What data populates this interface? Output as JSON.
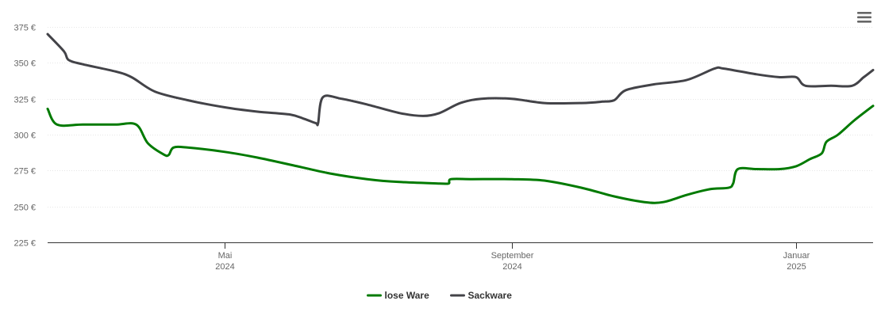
{
  "chart_data": {
    "type": "line",
    "title": "",
    "xlabel": "",
    "ylabel": "",
    "ylim": [
      225,
      375
    ],
    "y_ticks": [
      "225 €",
      "250 €",
      "275 €",
      "300 €",
      "325 €",
      "350 €",
      "375 €"
    ],
    "y_tick_values": [
      225,
      250,
      275,
      300,
      325,
      350,
      375
    ],
    "x_range": [
      "2024-02-15",
      "2025-02-03"
    ],
    "x_ticks": [
      {
        "date": "2024-05-01",
        "month": "Mai",
        "year": "2024"
      },
      {
        "date": "2024-09-01",
        "month": "September",
        "year": "2024"
      },
      {
        "date": "2025-01-01",
        "month": "Januar",
        "year": "2025"
      }
    ],
    "grid": "horizontal",
    "legend_position": "bottom-center",
    "series": [
      {
        "name": "lose Ware",
        "color": "#007a00",
        "points": [
          [
            "2024-02-15",
            318
          ],
          [
            "2024-02-19",
            307
          ],
          [
            "2024-03-01",
            307
          ],
          [
            "2024-03-15",
            307
          ],
          [
            "2024-03-24",
            307
          ],
          [
            "2024-03-29",
            294
          ],
          [
            "2024-04-05",
            286
          ],
          [
            "2024-04-07",
            286
          ],
          [
            "2024-04-09",
            291
          ],
          [
            "2024-04-15",
            291
          ],
          [
            "2024-05-01",
            288
          ],
          [
            "2024-05-15",
            284
          ],
          [
            "2024-06-01",
            278
          ],
          [
            "2024-06-15",
            273
          ],
          [
            "2024-07-01",
            269
          ],
          [
            "2024-07-15",
            267
          ],
          [
            "2024-08-01",
            266
          ],
          [
            "2024-08-05",
            266
          ],
          [
            "2024-08-06",
            269
          ],
          [
            "2024-08-15",
            269
          ],
          [
            "2024-09-01",
            269
          ],
          [
            "2024-09-15",
            268
          ],
          [
            "2024-10-01",
            263
          ],
          [
            "2024-10-15",
            257
          ],
          [
            "2024-10-28",
            253
          ],
          [
            "2024-11-05",
            253
          ],
          [
            "2024-11-15",
            258
          ],
          [
            "2024-11-25",
            262
          ],
          [
            "2024-12-03",
            263
          ],
          [
            "2024-12-05",
            266
          ],
          [
            "2024-12-07",
            276
          ],
          [
            "2024-12-15",
            276
          ],
          [
            "2024-12-25",
            276
          ],
          [
            "2025-01-01",
            278
          ],
          [
            "2025-01-07",
            283
          ],
          [
            "2025-01-12",
            287
          ],
          [
            "2025-01-14",
            295
          ],
          [
            "2025-01-19",
            300
          ],
          [
            "2025-01-26",
            310
          ],
          [
            "2025-02-03",
            320
          ]
        ]
      },
      {
        "name": "Sackware",
        "color": "#434348",
        "points": [
          [
            "2024-02-15",
            370
          ],
          [
            "2024-02-22",
            358
          ],
          [
            "2024-02-24",
            352
          ],
          [
            "2024-03-01",
            349
          ],
          [
            "2024-03-15",
            344
          ],
          [
            "2024-03-22",
            340
          ],
          [
            "2024-04-01",
            330
          ],
          [
            "2024-04-15",
            324
          ],
          [
            "2024-05-01",
            319
          ],
          [
            "2024-05-15",
            316
          ],
          [
            "2024-05-29",
            314
          ],
          [
            "2024-06-04",
            311
          ],
          [
            "2024-06-09",
            308
          ],
          [
            "2024-06-10",
            308
          ],
          [
            "2024-06-12",
            326
          ],
          [
            "2024-06-20",
            325
          ],
          [
            "2024-07-01",
            321
          ],
          [
            "2024-07-15",
            315
          ],
          [
            "2024-07-25",
            313
          ],
          [
            "2024-08-01",
            315
          ],
          [
            "2024-08-10",
            322
          ],
          [
            "2024-08-19",
            325
          ],
          [
            "2024-09-01",
            325
          ],
          [
            "2024-09-15",
            322
          ],
          [
            "2024-10-01",
            322
          ],
          [
            "2024-10-10",
            323
          ],
          [
            "2024-10-15",
            324
          ],
          [
            "2024-10-20",
            331
          ],
          [
            "2024-11-01",
            335
          ],
          [
            "2024-11-15",
            338
          ],
          [
            "2024-11-27",
            346
          ],
          [
            "2024-12-01",
            346
          ],
          [
            "2024-12-15",
            342
          ],
          [
            "2024-12-25",
            340
          ],
          [
            "2025-01-01",
            340
          ],
          [
            "2025-01-05",
            334
          ],
          [
            "2025-01-16",
            334
          ],
          [
            "2025-01-25",
            334
          ],
          [
            "2025-01-30",
            340
          ],
          [
            "2025-02-03",
            345
          ]
        ]
      }
    ]
  },
  "menu": {
    "icon": "hamburger-menu-icon"
  }
}
